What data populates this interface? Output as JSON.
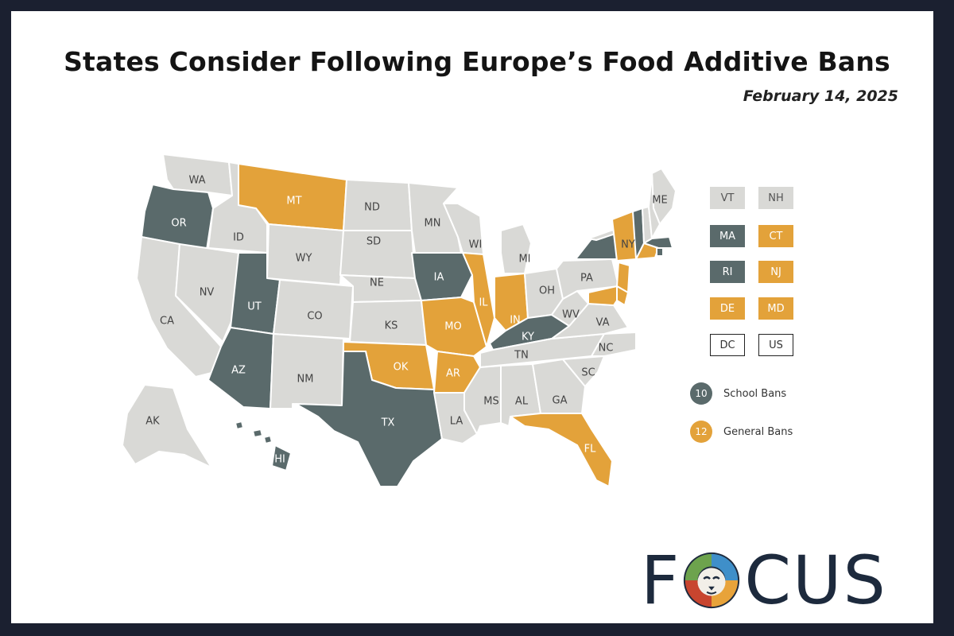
{
  "header": {
    "title": "States Consider Following Europe’s Food Additive Bans",
    "date": "February 14, 2025"
  },
  "colors": {
    "school": "#5a6a6b",
    "general": "#e3a23a",
    "none": "#d9d9d6",
    "frame": "#1b2030",
    "logo_text": "#1d2a3d"
  },
  "states": [
    {
      "abbr": "WA",
      "status": "none"
    },
    {
      "abbr": "OR",
      "status": "school"
    },
    {
      "abbr": "CA",
      "status": "none"
    },
    {
      "abbr": "ID",
      "status": "none"
    },
    {
      "abbr": "NV",
      "status": "none"
    },
    {
      "abbr": "MT",
      "status": "general"
    },
    {
      "abbr": "WY",
      "status": "none"
    },
    {
      "abbr": "UT",
      "status": "school"
    },
    {
      "abbr": "AZ",
      "status": "school"
    },
    {
      "abbr": "CO",
      "status": "none"
    },
    {
      "abbr": "NM",
      "status": "none"
    },
    {
      "abbr": "ND",
      "status": "none"
    },
    {
      "abbr": "SD",
      "status": "none"
    },
    {
      "abbr": "NE",
      "status": "none"
    },
    {
      "abbr": "KS",
      "status": "none"
    },
    {
      "abbr": "OK",
      "status": "general"
    },
    {
      "abbr": "TX",
      "status": "school"
    },
    {
      "abbr": "MN",
      "status": "none"
    },
    {
      "abbr": "IA",
      "status": "school"
    },
    {
      "abbr": "MO",
      "status": "general"
    },
    {
      "abbr": "AR",
      "status": "general"
    },
    {
      "abbr": "LA",
      "status": "none"
    },
    {
      "abbr": "WI",
      "status": "none"
    },
    {
      "abbr": "IL",
      "status": "general"
    },
    {
      "abbr": "MI",
      "status": "none"
    },
    {
      "abbr": "IN",
      "status": "general"
    },
    {
      "abbr": "OH",
      "status": "none"
    },
    {
      "abbr": "KY",
      "status": "school"
    },
    {
      "abbr": "TN",
      "status": "none"
    },
    {
      "abbr": "MS",
      "status": "none"
    },
    {
      "abbr": "AL",
      "status": "none"
    },
    {
      "abbr": "GA",
      "status": "none"
    },
    {
      "abbr": "FL",
      "status": "general"
    },
    {
      "abbr": "SC",
      "status": "none"
    },
    {
      "abbr": "NC",
      "status": "none"
    },
    {
      "abbr": "VA",
      "status": "none"
    },
    {
      "abbr": "WV",
      "status": "none"
    },
    {
      "abbr": "PA",
      "status": "none"
    },
    {
      "abbr": "NY",
      "status": "school"
    },
    {
      "abbr": "ME",
      "status": "none"
    },
    {
      "abbr": "AK",
      "status": "none"
    },
    {
      "abbr": "HI",
      "status": "school"
    }
  ],
  "overlay_labels": [
    {
      "abbr": "NY",
      "status": "general"
    }
  ],
  "small_states": [
    {
      "abbr": "VT",
      "status": "none"
    },
    {
      "abbr": "NH",
      "status": "none"
    },
    {
      "abbr": "MA",
      "status": "school"
    },
    {
      "abbr": "CT",
      "status": "general"
    },
    {
      "abbr": "RI",
      "status": "school"
    },
    {
      "abbr": "NJ",
      "status": "general"
    },
    {
      "abbr": "DE",
      "status": "general"
    },
    {
      "abbr": "MD",
      "status": "general"
    },
    {
      "abbr": "DC",
      "status": "outline"
    },
    {
      "abbr": "US",
      "status": "outline"
    }
  ],
  "legend": [
    {
      "count": "10",
      "label": "School Bans",
      "status": "school"
    },
    {
      "count": "12",
      "label": "General Bans",
      "status": "general"
    }
  ],
  "logo": {
    "letters_before": "F",
    "letters_after": "CUS",
    "icon": "lion-head-icon"
  }
}
